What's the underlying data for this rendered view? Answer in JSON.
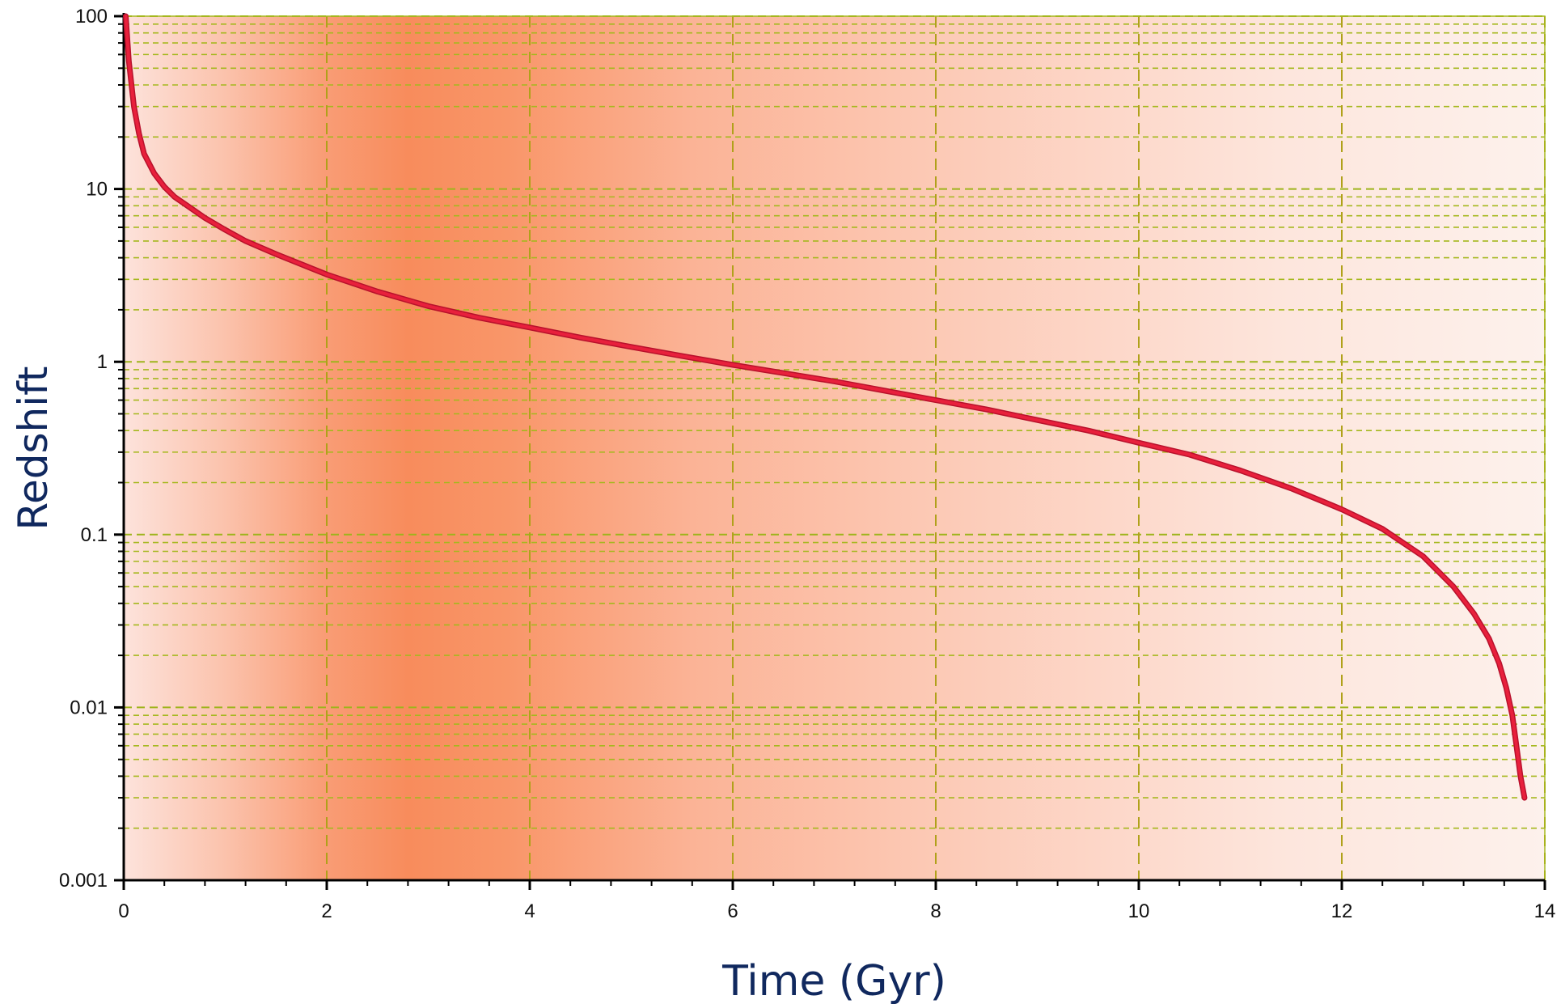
{
  "chart_data": {
    "type": "line",
    "title": "",
    "xlabel": "Time (Gyr)",
    "ylabel": "Redshift",
    "xlim": [
      0,
      14
    ],
    "ylim": [
      0.001,
      100
    ],
    "y_scale": "log",
    "x_ticks": [
      0,
      2,
      4,
      6,
      8,
      10,
      12,
      14
    ],
    "y_ticks": [
      0.001,
      0.01,
      0.1,
      1,
      10,
      100
    ],
    "y_tick_labels": [
      "0.001",
      "0.01",
      "0.1",
      "1",
      "10",
      "100"
    ],
    "grid": true,
    "background": "orange vertical gradient, most intense near 2.5-3.5 Gyr, fading toward both ends",
    "series": [
      {
        "color": "#e8203c",
        "x": [
          0.02,
          0.05,
          0.1,
          0.15,
          0.2,
          0.3,
          0.4,
          0.5,
          0.6,
          0.8,
          1.0,
          1.2,
          1.5,
          2.0,
          2.5,
          3.0,
          3.5,
          4.0,
          4.5,
          5.0,
          5.5,
          6.0,
          6.5,
          7.0,
          7.5,
          8.0,
          8.5,
          9.0,
          9.5,
          10.0,
          10.5,
          11.0,
          11.5,
          12.0,
          12.4,
          12.8,
          13.1,
          13.3,
          13.45,
          13.55,
          13.62,
          13.68,
          13.72,
          13.76,
          13.8
        ],
        "y": [
          100,
          55,
          30,
          21,
          16,
          12.3,
          10.3,
          9.0,
          8.2,
          6.8,
          5.8,
          5.0,
          4.2,
          3.2,
          2.55,
          2.1,
          1.8,
          1.58,
          1.38,
          1.22,
          1.08,
          0.96,
          0.86,
          0.77,
          0.68,
          0.6,
          0.53,
          0.46,
          0.4,
          0.34,
          0.29,
          0.235,
          0.185,
          0.14,
          0.108,
          0.075,
          0.05,
          0.035,
          0.025,
          0.018,
          0.013,
          0.009,
          0.006,
          0.004,
          0.003
        ]
      }
    ]
  }
}
